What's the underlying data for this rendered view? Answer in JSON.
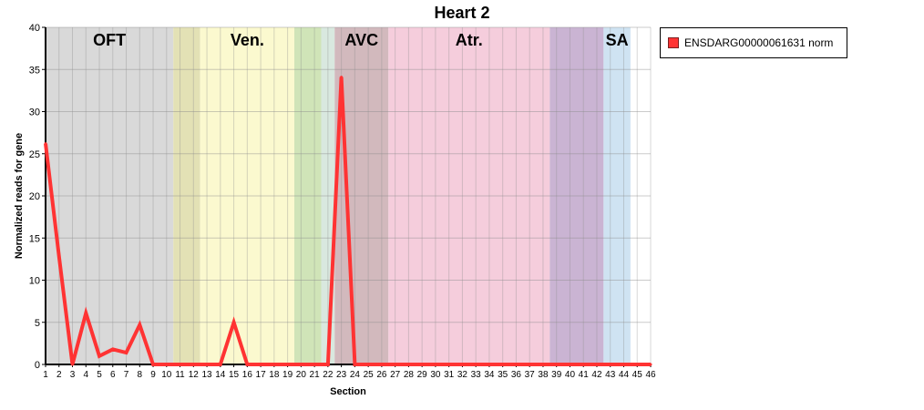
{
  "chart_data": {
    "type": "line",
    "title": "Heart 2",
    "xlabel": "Section",
    "ylabel": "Normalized reads for gene",
    "xlim": [
      1,
      46
    ],
    "ylim": [
      0,
      40
    ],
    "yticks": [
      0,
      5,
      10,
      15,
      20,
      25,
      30,
      35,
      40
    ],
    "grid": true,
    "legend_position": "right",
    "regions": [
      {
        "label": "OFT",
        "from": 1,
        "to": 10.5,
        "color": "#d9d9d9"
      },
      {
        "label": "",
        "from": 10.5,
        "to": 12.5,
        "color": "#e3e1b5"
      },
      {
        "label": "Ven.",
        "from": 12.5,
        "to": 19.5,
        "color": "#fbf9cf"
      },
      {
        "label": "",
        "from": 19.5,
        "to": 21.5,
        "color": "#d0e4b8"
      },
      {
        "label": "",
        "from": 21.5,
        "to": 22.5,
        "color": "#d9e8df"
      },
      {
        "label": "AVC",
        "from": 22.5,
        "to": 26.5,
        "color": "#d2b9bd"
      },
      {
        "label": "Atr.",
        "from": 26.5,
        "to": 38.5,
        "color": "#f5cddc"
      },
      {
        "label": "",
        "from": 38.5,
        "to": 42.5,
        "color": "#cab4d3"
      },
      {
        "label": "SA",
        "from": 42.5,
        "to": 44.5,
        "color": "#cfe3f2"
      }
    ],
    "series": [
      {
        "name": "ENSDARG00000061631 norm",
        "color": "#ff3333",
        "x": [
          1,
          2,
          3,
          4,
          5,
          6,
          7,
          8,
          9,
          10,
          11,
          12,
          13,
          14,
          15,
          16,
          17,
          18,
          19,
          20,
          21,
          22,
          23,
          24,
          25,
          26,
          27,
          28,
          29,
          30,
          31,
          32,
          33,
          34,
          35,
          36,
          37,
          38,
          39,
          40,
          41,
          42,
          43,
          44,
          45,
          46
        ],
        "values": [
          26.2,
          12.8,
          0,
          6.1,
          1,
          1.8,
          1.4,
          4.7,
          0,
          0,
          0,
          0,
          0,
          0,
          5,
          0,
          0,
          0,
          0,
          0,
          0,
          0,
          34.1,
          0,
          0,
          0,
          0,
          0,
          0,
          0,
          0,
          0,
          0,
          0,
          0,
          0,
          0,
          0,
          0,
          0,
          0,
          0,
          0,
          0,
          0,
          0
        ]
      }
    ]
  }
}
